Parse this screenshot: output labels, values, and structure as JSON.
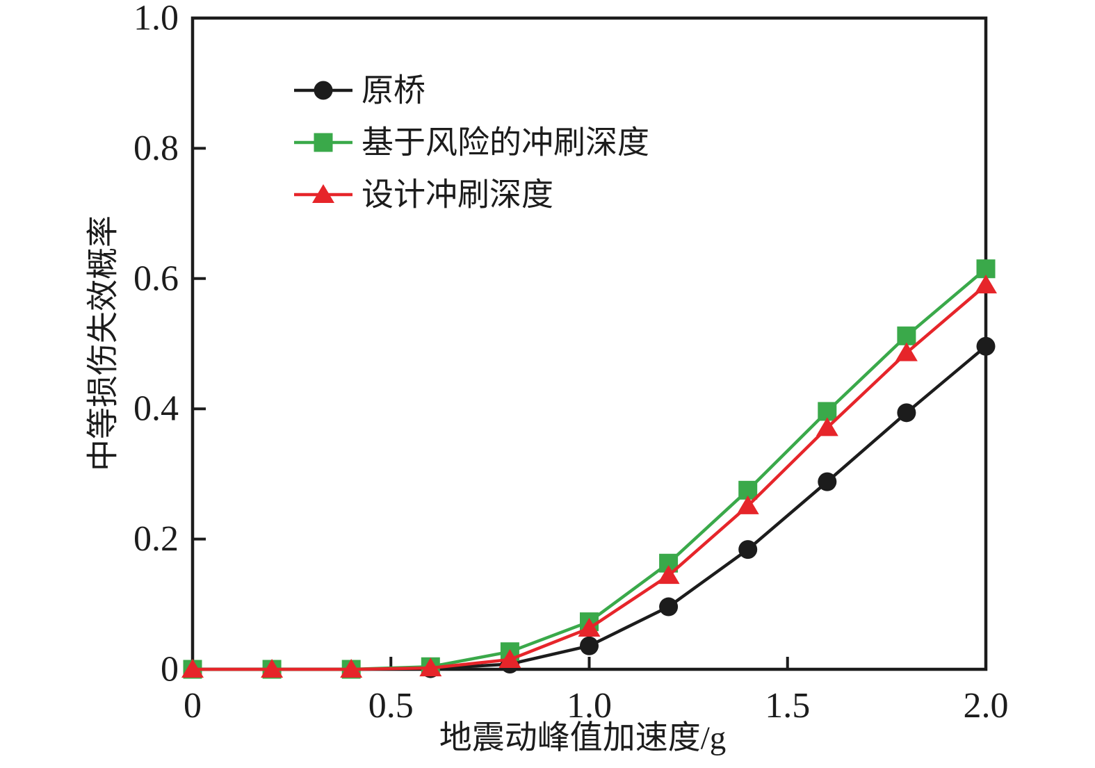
{
  "figure": {
    "background": "#ffffff",
    "frame_color": "#1c1c1c"
  },
  "chart_data": {
    "type": "line",
    "title": "",
    "xlabel": "地震动峰值加速度/g",
    "ylabel": "中等损伤失效概率",
    "xlim": [
      0,
      2.0
    ],
    "ylim": [
      0,
      1.0
    ],
    "grid": false,
    "legend_position": "upper-left-inside",
    "x_ticks": [
      0,
      0.5,
      1.0,
      1.5,
      2.0
    ],
    "x_tick_labels": [
      "0",
      "0.5",
      "1.0",
      "1.5",
      "2.0"
    ],
    "y_ticks": [
      0,
      0.2,
      0.4,
      0.6,
      0.8,
      1.0
    ],
    "y_tick_labels": [
      "0",
      "0.2",
      "0.4",
      "0.6",
      "0.8",
      "1.0"
    ],
    "x": [
      0,
      0.2,
      0.4,
      0.6,
      0.8,
      1.0,
      1.2,
      1.4,
      1.6,
      1.8,
      2.0
    ],
    "series": [
      {
        "name": "原桥",
        "color": "#1c1c1c",
        "marker": "circle",
        "values": [
          0,
          0,
          0,
          0.001,
          0.008,
          0.036,
          0.096,
          0.184,
          0.288,
          0.394,
          0.496
        ]
      },
      {
        "name": "基于风险的冲刷深度",
        "color": "#3aa94a",
        "marker": "square",
        "values": [
          0,
          0,
          0,
          0.004,
          0.027,
          0.073,
          0.163,
          0.275,
          0.396,
          0.512,
          0.615
        ]
      },
      {
        "name": "设计冲刷深度",
        "color": "#e6252a",
        "marker": "triangle",
        "values": [
          0,
          0,
          0,
          0.002,
          0.015,
          0.063,
          0.144,
          0.251,
          0.371,
          0.486,
          0.59
        ]
      }
    ]
  }
}
